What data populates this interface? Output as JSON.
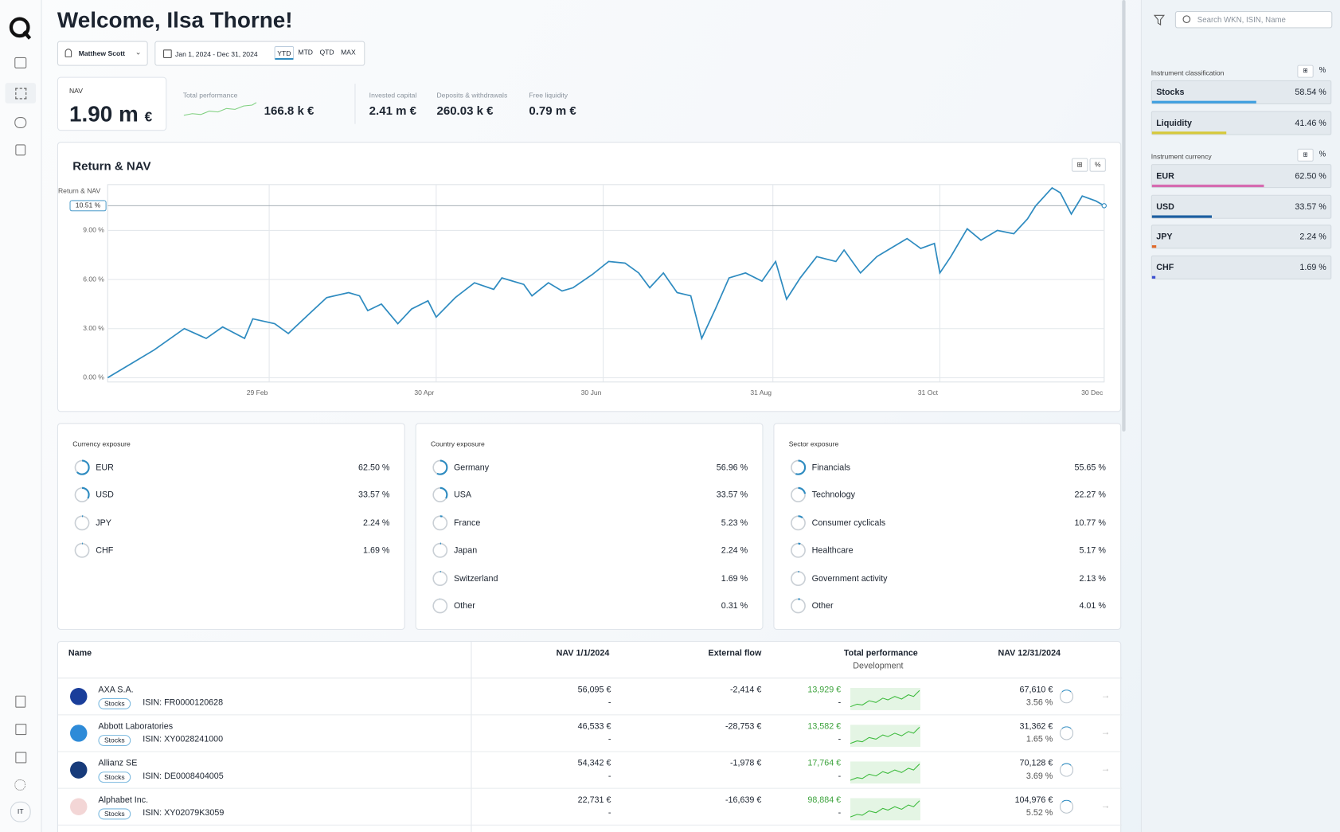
{
  "sidebar": {
    "avatar": "IT"
  },
  "header": {
    "title": "Welcome, Ilsa Thorne!",
    "user": "Matthew Scott",
    "date_range": "Jan 1, 2024 - Dec 31, 2024",
    "periods": [
      "YTD",
      "MTD",
      "QTD",
      "MAX"
    ]
  },
  "kpis": {
    "nav": {
      "label": "NAV",
      "value": "1.90 m",
      "unit": "€"
    },
    "total_performance": {
      "label": "Total performance",
      "value": "166.8 k €"
    },
    "invested_capital": {
      "label": "Invested capital",
      "value": "2.41 m €"
    },
    "deposits": {
      "label": "Deposits & withdrawals",
      "value": "260.03 k €"
    },
    "free_liquidity": {
      "label": "Free liquidity",
      "value": "0.79 m €"
    }
  },
  "chart_data": {
    "type": "line",
    "title": "Return & NAV",
    "y_label": "Return & NAV",
    "color": "#2e8bc0",
    "x": [
      1,
      9,
      18,
      29,
      37,
      43,
      51,
      54,
      62,
      67,
      74,
      81,
      89,
      93,
      96,
      101,
      107,
      112,
      118,
      121,
      128,
      135,
      142,
      145,
      153,
      156,
      162,
      167,
      171,
      178,
      184,
      190,
      195,
      199,
      204,
      209,
      214,
      218,
      223,
      228,
      234,
      240,
      245,
      249,
      254,
      260,
      267,
      270,
      276,
      282,
      287,
      293,
      298,
      303,
      305,
      309,
      315,
      320,
      326,
      332,
      337,
      340,
      346,
      349,
      353,
      357,
      362,
      365
    ],
    "values": [
      0,
      0.8,
      1.7,
      3.0,
      2.4,
      3.1,
      2.4,
      3.6,
      3.3,
      2.7,
      3.8,
      4.9,
      5.2,
      5.0,
      4.1,
      4.5,
      3.3,
      4.2,
      4.7,
      3.7,
      4.9,
      5.8,
      5.4,
      6.1,
      5.7,
      5.0,
      5.8,
      5.3,
      5.5,
      6.3,
      7.1,
      7.0,
      6.4,
      5.5,
      6.4,
      5.2,
      5.0,
      2.4,
      4.2,
      6.1,
      6.4,
      5.9,
      7.1,
      4.8,
      6.1,
      7.4,
      7.1,
      7.8,
      6.4,
      7.4,
      7.9,
      8.5,
      7.9,
      8.2,
      6.4,
      7.4,
      9.1,
      8.4,
      9.0,
      8.8,
      9.7,
      10.5,
      11.6,
      11.3,
      10.0,
      11.1,
      10.8,
      10.51
    ],
    "xlim": [
      1,
      365
    ],
    "ylim": [
      0,
      11.8
    ],
    "xticks": [
      {
        "value": 60,
        "label": "29 Feb"
      },
      {
        "value": 121,
        "label": "30 Apr"
      },
      {
        "value": 182,
        "label": "30 Jun"
      },
      {
        "value": 244,
        "label": "31 Aug"
      },
      {
        "value": 305,
        "label": "31 Oct"
      },
      {
        "value": 365,
        "label": "30 Dec"
      }
    ],
    "yticks": [
      {
        "value": 0,
        "label": "0.00 %"
      },
      {
        "value": 3,
        "label": "3.00 %"
      },
      {
        "value": 6,
        "label": "6.00 %"
      },
      {
        "value": 9,
        "label": "9.00 %"
      }
    ],
    "grid": true,
    "marker": {
      "value": 10.51,
      "label": "10.51 %"
    }
  },
  "exposures": [
    {
      "title": "Currency exposure",
      "items": [
        {
          "name": "EUR",
          "value": 62.5,
          "label": "62.50 %"
        },
        {
          "name": "USD",
          "value": 33.57,
          "label": "33.57 %"
        },
        {
          "name": "JPY",
          "value": 2.24,
          "label": "2.24 %"
        },
        {
          "name": "CHF",
          "value": 1.69,
          "label": "1.69 %"
        }
      ]
    },
    {
      "title": "Country exposure",
      "items": [
        {
          "name": "Germany",
          "value": 56.96,
          "label": "56.96 %"
        },
        {
          "name": "USA",
          "value": 33.57,
          "label": "33.57 %"
        },
        {
          "name": "France",
          "value": 5.23,
          "label": "5.23 %"
        },
        {
          "name": "Japan",
          "value": 2.24,
          "label": "2.24 %"
        },
        {
          "name": "Switzerland",
          "value": 1.69,
          "label": "1.69 %"
        },
        {
          "name": "Other",
          "value": 0.31,
          "label": "0.31 %"
        }
      ]
    },
    {
      "title": "Sector exposure",
      "items": [
        {
          "name": "Financials",
          "value": 55.65,
          "label": "55.65 %"
        },
        {
          "name": "Technology",
          "value": 22.27,
          "label": "22.27 %"
        },
        {
          "name": "Consumer cyclicals",
          "value": 10.77,
          "label": "10.77 %"
        },
        {
          "name": "Healthcare",
          "value": 5.17,
          "label": "5.17 %"
        },
        {
          "name": "Government activity",
          "value": 2.13,
          "label": "2.13 %"
        },
        {
          "name": "Other",
          "value": 4.01,
          "label": "4.01 %"
        }
      ]
    }
  ],
  "table": {
    "columns": [
      "Name",
      "NAV 1/1/2024",
      "External flow",
      "Total performance",
      "NAV 12/31/2024"
    ],
    "subcolumn": "Development",
    "rows": [
      {
        "name": "AXA S.A.",
        "tag": "Stocks",
        "isin": "ISIN: FR0000120628",
        "nav_start": "56,095 €",
        "nav_start_sub": "-",
        "flow": "-2,414 €",
        "performance": "13,929 €",
        "performance_sub": "-",
        "nav_end": "67,610 €",
        "nav_end_pct": "3.56 %"
      },
      {
        "name": "Abbott Laboratories",
        "tag": "Stocks",
        "isin": "ISIN: XY0028241000",
        "nav_start": "46,533 €",
        "nav_start_sub": "-",
        "flow": "-28,753 €",
        "performance": "13,582 €",
        "performance_sub": "-",
        "nav_end": "31,362 €",
        "nav_end_pct": "1.65 %"
      },
      {
        "name": "Allianz SE",
        "tag": "Stocks",
        "isin": "ISIN: DE0008404005",
        "nav_start": "54,342 €",
        "nav_start_sub": "-",
        "flow": "-1,978 €",
        "performance": "17,764 €",
        "performance_sub": "-",
        "nav_end": "70,128 €",
        "nav_end_pct": "3.69 %"
      },
      {
        "name": "Alphabet Inc.",
        "tag": "Stocks",
        "isin": "ISIN: XY02079K3059",
        "nav_start": "22,731 €",
        "nav_start_sub": "-",
        "flow": "-16,639 €",
        "performance": "98,884 €",
        "performance_sub": "-",
        "nav_end": "104,976 €",
        "nav_end_pct": "5.52 %"
      }
    ]
  },
  "panel": {
    "search_placeholder": "Search WKN, ISIN, Name",
    "classification": {
      "title": "Instrument classification",
      "items": [
        {
          "name": "Stocks",
          "value": 58.54,
          "label": "58.54 %",
          "color": "#3fa0e0"
        },
        {
          "name": "Liquidity",
          "value": 41.46,
          "label": "41.46 %",
          "color": "#d6c93a"
        }
      ]
    },
    "currency": {
      "title": "Instrument currency",
      "items": [
        {
          "name": "EUR",
          "value": 62.5,
          "label": "62.50 %",
          "color": "#d66bb0"
        },
        {
          "name": "USD",
          "value": 33.57,
          "label": "33.57 %",
          "color": "#1d5fa0"
        },
        {
          "name": "JPY",
          "value": 2.24,
          "label": "2.24 %",
          "color": "#e06a2a"
        },
        {
          "name": "CHF",
          "value": 1.69,
          "label": "1.69 %",
          "color": "#3b4fd0"
        }
      ]
    }
  }
}
